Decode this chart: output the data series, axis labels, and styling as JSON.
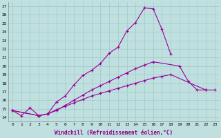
{
  "xlabel": "Windchill (Refroidissement éolien,°C)",
  "xlim": [
    -0.5,
    23.5
  ],
  "ylim": [
    13.5,
    27.5
  ],
  "xticks": [
    0,
    1,
    2,
    3,
    4,
    5,
    6,
    7,
    8,
    9,
    10,
    11,
    12,
    13,
    14,
    15,
    16,
    17,
    18,
    19,
    20,
    21,
    22,
    23
  ],
  "yticks": [
    14,
    15,
    16,
    17,
    18,
    19,
    20,
    21,
    22,
    23,
    24,
    25,
    26,
    27
  ],
  "bg_color": "#c0e0e0",
  "line_color": "#990099",
  "grid_color": "#a0c8c8",
  "lines": [
    {
      "x": [
        0,
        1,
        2,
        3,
        4,
        5,
        6,
        7,
        8,
        9,
        10,
        11,
        12,
        13,
        14,
        15,
        16,
        17,
        18
      ],
      "y": [
        14.8,
        14.2,
        15.1,
        14.2,
        14.4,
        15.8,
        16.5,
        17.8,
        18.9,
        19.5,
        20.3,
        21.5,
        22.2,
        24.1,
        25.1,
        26.8,
        26.7,
        24.3,
        21.4
      ]
    },
    {
      "x": [
        0,
        3,
        4,
        5,
        6,
        7,
        8,
        9,
        10,
        11,
        12,
        13,
        14,
        15,
        16,
        19,
        20,
        21,
        22
      ],
      "y": [
        14.8,
        14.2,
        14.4,
        14.8,
        15.4,
        16.0,
        16.6,
        17.2,
        17.7,
        18.2,
        18.7,
        19.2,
        19.7,
        20.1,
        20.5,
        20.0,
        18.2,
        17.2,
        17.2
      ]
    },
    {
      "x": [
        0,
        3,
        4,
        5,
        6,
        7,
        8,
        9,
        10,
        11,
        12,
        13,
        14,
        15,
        16,
        17,
        18,
        22,
        23
      ],
      "y": [
        14.8,
        14.2,
        14.4,
        14.9,
        15.3,
        15.7,
        16.1,
        16.5,
        16.8,
        17.1,
        17.4,
        17.7,
        18.0,
        18.3,
        18.6,
        18.8,
        19.0,
        17.2,
        17.2
      ]
    }
  ]
}
